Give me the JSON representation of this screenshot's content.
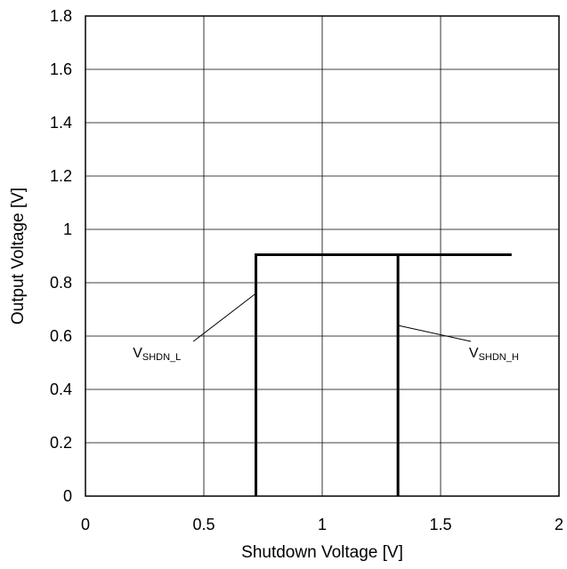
{
  "chart_data": {
    "type": "line",
    "xlabel": "Shutdown Voltage [V]",
    "ylabel": "Output Voltage [V]",
    "xlim": [
      0,
      2
    ],
    "ylim": [
      0,
      1.8
    ],
    "xticks": [
      "0",
      "0.5",
      "1",
      "1.5",
      "2"
    ],
    "yticks": [
      "0",
      "0.2",
      "0.4",
      "0.6",
      "0.8",
      "1",
      "1.2",
      "1.4",
      "1.6",
      "1.8"
    ],
    "grid": true,
    "series": [
      {
        "name": "",
        "color": "#000000",
        "points": [
          [
            0.72,
            0
          ],
          [
            0.72,
            0.905
          ],
          [
            1.8,
            0.905
          ]
        ]
      },
      {
        "name": "",
        "color": "#000000",
        "points": [
          [
            1.32,
            0
          ],
          [
            1.32,
            0.905
          ]
        ]
      }
    ],
    "annotations": [
      {
        "text_main": "V",
        "text_sub": "SHDN_L",
        "target": [
          0.72,
          0.76
        ],
        "label_at": [
          0.2,
          0.52
        ],
        "anchor": "start"
      },
      {
        "text_main": "V",
        "text_sub": "SHDN_H",
        "target": [
          1.32,
          0.64
        ],
        "label_at": [
          1.62,
          0.52
        ],
        "anchor": "start"
      }
    ]
  }
}
